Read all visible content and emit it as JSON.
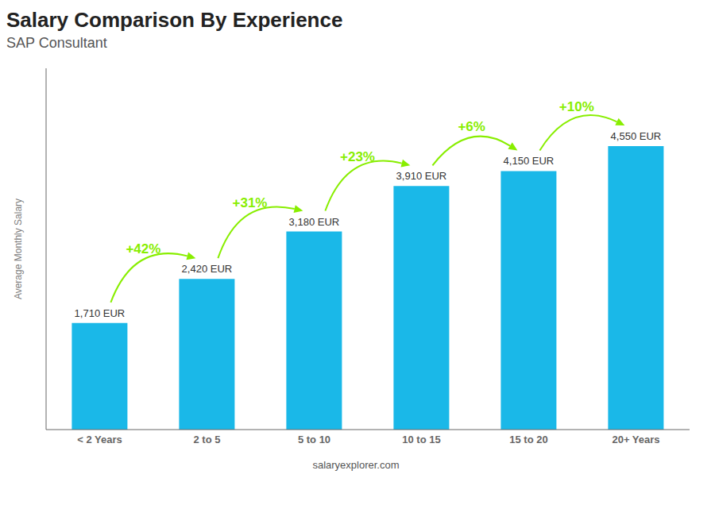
{
  "chart_data": {
    "type": "bar",
    "title": "Salary Comparison By Experience",
    "subtitle": "SAP Consultant",
    "ylabel": "Average Monthly Salary",
    "categories": [
      "< 2 Years",
      "2 to 5",
      "5 to 10",
      "10 to 15",
      "15 to 20",
      "20+ Years"
    ],
    "values": [
      1710,
      2420,
      3180,
      3910,
      4150,
      4550
    ],
    "value_labels": [
      "1,710 EUR",
      "2,420 EUR",
      "3,180 EUR",
      "3,910 EUR",
      "4,150 EUR",
      "4,550 EUR"
    ],
    "data_labels": true,
    "color": "#1ab8e8",
    "ylim": [
      0,
      5800
    ],
    "tick_labels": "x",
    "grid": false,
    "annotations": [
      {
        "text": "+42%",
        "from": "< 2 Years",
        "to": "2 to 5",
        "color": "#88ee00"
      },
      {
        "text": "+31%",
        "from": "2 to 5",
        "to": "5 to 10",
        "color": "#88ee00"
      },
      {
        "text": "+23%",
        "from": "5 to 10",
        "to": "10 to 15",
        "color": "#88ee00"
      },
      {
        "text": "+6%",
        "from": "10 to 15",
        "to": "15 to 20",
        "color": "#88ee00"
      },
      {
        "text": "+10%",
        "from": "15 to 20",
        "to": "20+ Years",
        "color": "#88ee00"
      },
      {
        "text": "salaryexplorer.com"
      }
    ]
  }
}
